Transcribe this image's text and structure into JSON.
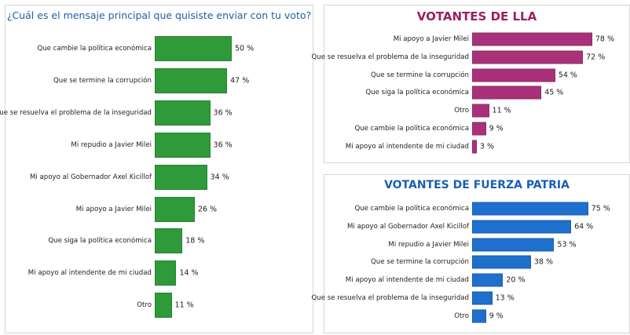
{
  "chart_data": [
    {
      "type": "bar",
      "orientation": "horizontal",
      "title": "¿Cuál es el mensaje principal que quisiste enviar con tu voto?",
      "color": "#2e9a3a",
      "title_color": "#1f5fa6",
      "categories": [
        "Que cambie la política económica",
        "Que se termine la corrupción",
        "Que se resuelva el problema de la inseguridad",
        "Mi repudio a Javier Milei",
        "Mi apoyo al Gobernador Axel Kicillof",
        "Mi apoyo a Javier Milei",
        "Que siga la política económica",
        "Mi apoyo al intendente de mi ciudad",
        "Otro"
      ],
      "values": [
        50,
        47,
        36,
        36,
        34,
        26,
        18,
        14,
        11
      ],
      "unit": "%"
    },
    {
      "type": "bar",
      "orientation": "horizontal",
      "title": "VOTANTES DE LLA",
      "color": "#a8317a",
      "title_color": "#9c1f5e",
      "categories": [
        "Mi apoyo a Javier Milei",
        "Que se resuelva el problema de la inseguridad",
        "Que se termine la corrupción",
        "Que siga la política económica",
        "Otro",
        "Que cambie la política económica",
        "Mi apoyo al intendente de mi ciudad"
      ],
      "values": [
        78,
        72,
        54,
        45,
        11,
        9,
        3
      ],
      "unit": "%"
    },
    {
      "type": "bar",
      "orientation": "horizontal",
      "title": "VOTANTES DE FUERZA PATRIA",
      "color": "#1f6fcc",
      "title_color": "#1a5fb4",
      "categories": [
        "Que cambie la política económica",
        "Mi apoyo al Gobernador Axel Kicillof",
        "Mi repudio a Javier Milei",
        "Que se termine la corrupción",
        "Mi apoyo al intendente de mi ciudad",
        "Que se resuelva el problema de la inseguridad",
        "Otro"
      ],
      "values": [
        75,
        64,
        53,
        38,
        20,
        13,
        9
      ],
      "unit": "%"
    }
  ]
}
